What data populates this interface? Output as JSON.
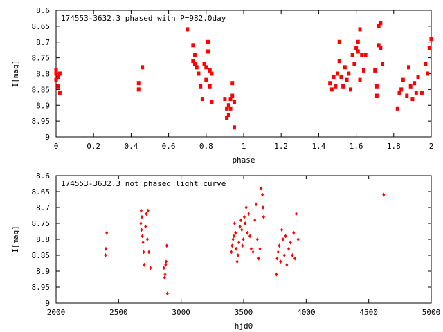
{
  "colors": {
    "marker": "#ff0000",
    "frame": "#000000"
  },
  "chart_data": [
    {
      "type": "scatter",
      "title": "174553-3632.3 phased with P=982.0day",
      "xlabel": "phase",
      "ylabel": "I[mag]",
      "xlim": [
        0,
        2
      ],
      "ylim": [
        8.6,
        9
      ],
      "y_inverted": true,
      "grid": false,
      "marker": "filled-square",
      "xticks": [
        "0",
        "0.2",
        "0.4",
        "0.6",
        "0.8",
        "1",
        "1.2",
        "1.4",
        "1.6",
        "1.8",
        "2"
      ],
      "yticks": [
        "8.6",
        "8.65",
        "8.7",
        "8.75",
        "8.8",
        "8.85",
        "8.9",
        "8.95",
        "9"
      ],
      "x": [
        0.0,
        0.0,
        0.0,
        0.01,
        0.01,
        0.02,
        0.02,
        0.44,
        0.44,
        0.46,
        0.7,
        0.73,
        0.73,
        0.74,
        0.74,
        0.75,
        0.76,
        0.77,
        0.78,
        0.79,
        0.8,
        0.8,
        0.81,
        0.81,
        0.82,
        0.82,
        0.83,
        0.83,
        0.9,
        0.91,
        0.91,
        0.92,
        0.92,
        0.93,
        0.93,
        0.94,
        0.94,
        0.95,
        0.95,
        1.46,
        1.47,
        1.48,
        1.49,
        1.5,
        1.51,
        1.51,
        1.52,
        1.53,
        1.54,
        1.55,
        1.56,
        1.57,
        1.58,
        1.59,
        1.6,
        1.61,
        1.61,
        1.62,
        1.62,
        1.63,
        1.64,
        1.65,
        1.7,
        1.71,
        1.71,
        1.72,
        1.72,
        1.73,
        1.73,
        1.74,
        1.82,
        1.83,
        1.84,
        1.85,
        1.87,
        1.88,
        1.89,
        1.9,
        1.91,
        1.92,
        1.93,
        1.95,
        1.97,
        1.98,
        1.99,
        2.0
      ],
      "y": [
        8.79,
        8.82,
        8.8,
        8.84,
        8.81,
        8.86,
        8.8,
        8.83,
        8.85,
        8.78,
        8.66,
        8.71,
        8.76,
        8.74,
        8.77,
        8.78,
        8.8,
        8.84,
        8.88,
        8.77,
        8.82,
        8.78,
        8.7,
        8.73,
        8.84,
        8.79,
        8.8,
        8.89,
        8.88,
        8.91,
        8.94,
        8.93,
        8.9,
        8.91,
        8.88,
        8.83,
        8.87,
        8.89,
        8.97,
        8.83,
        8.85,
        8.81,
        8.84,
        8.8,
        8.7,
        8.76,
        8.81,
        8.84,
        8.78,
        8.82,
        8.8,
        8.85,
        8.74,
        8.77,
        8.72,
        8.7,
        8.73,
        8.66,
        8.82,
        8.74,
        8.79,
        8.74,
        8.79,
        8.84,
        8.87,
        8.71,
        8.65,
        8.64,
        8.72,
        8.77,
        8.91,
        8.86,
        8.85,
        8.82,
        8.87,
        8.78,
        8.84,
        8.88,
        8.83,
        8.86,
        8.81,
        8.86,
        8.77,
        8.8,
        8.72,
        8.69
      ]
    },
    {
      "type": "scatter",
      "title": "174553-3632.3 not phased light curve",
      "xlabel": "hjd0",
      "ylabel": "I[mag]",
      "xlim": [
        2000,
        5000
      ],
      "ylim": [
        8.6,
        9
      ],
      "y_inverted": true,
      "grid": false,
      "marker": "filled-diamond",
      "xticks": [
        "2000",
        "2500",
        "3000",
        "3500",
        "4000",
        "4500",
        "5000"
      ],
      "yticks": [
        "8.6",
        "8.65",
        "8.7",
        "8.75",
        "8.8",
        "8.85",
        "8.9",
        "8.95",
        "9"
      ],
      "x": [
        2395,
        2398,
        2405,
        2678,
        2680,
        2683,
        2686,
        2690,
        2695,
        2700,
        2705,
        2715,
        2722,
        2730,
        2735,
        2742,
        2755,
        2862,
        2868,
        2872,
        2876,
        2880,
        2885,
        2890,
        3402,
        3408,
        3415,
        3422,
        3428,
        3435,
        3440,
        3448,
        3455,
        3462,
        3470,
        3478,
        3485,
        3490,
        3498,
        3505,
        3512,
        3520,
        3530,
        3540,
        3550,
        3560,
        3575,
        3590,
        3600,
        3610,
        3620,
        3630,
        3640,
        3650,
        3655,
        3660,
        3762,
        3768,
        3775,
        3785,
        3795,
        3805,
        3815,
        3825,
        3835,
        3845,
        3860,
        3875,
        3890,
        3900,
        3910,
        3920,
        3935,
        4620
      ],
      "y": [
        8.85,
        8.83,
        8.78,
        8.75,
        8.71,
        8.77,
        8.73,
        8.79,
        8.81,
        8.84,
        8.88,
        8.76,
        8.72,
        8.8,
        8.71,
        8.84,
        8.89,
        8.89,
        8.92,
        8.91,
        8.88,
        8.87,
        8.82,
        8.97,
        8.84,
        8.82,
        8.8,
        8.79,
        8.75,
        8.78,
        8.83,
        8.87,
        8.85,
        8.81,
        8.76,
        8.74,
        8.77,
        8.82,
        8.8,
        8.73,
        8.75,
        8.7,
        8.78,
        8.72,
        8.79,
        8.83,
        8.84,
        8.74,
        8.69,
        8.8,
        8.86,
        8.83,
        8.64,
        8.66,
        8.7,
        8.73,
        8.91,
        8.86,
        8.84,
        8.82,
        8.87,
        8.77,
        8.8,
        8.85,
        8.79,
        8.88,
        8.83,
        8.81,
        8.85,
        8.78,
        8.86,
        8.72,
        8.8,
        8.66
      ]
    }
  ]
}
